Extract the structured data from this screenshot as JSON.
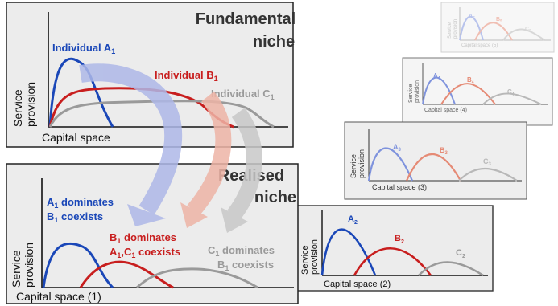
{
  "colors": {
    "blue": "#1a47b8",
    "red": "#c81e1e",
    "gray": "#9a9a9a",
    "blue_light": "#7f93dd",
    "red_light": "#e58a75",
    "gray_light": "#b8b8b8",
    "panel_bg": "#ececec",
    "arrow_blue": "#aeb8e8",
    "arrow_red": "#eeb4a6",
    "arrow_gray": "#c8c8c8"
  },
  "fundamental": {
    "title_line1": "Fundamental",
    "title_line2": "niche",
    "label_a": "Individual A",
    "label_a_sub": "1",
    "label_b": "Individual B",
    "label_b_sub": "1",
    "label_c": "Individual C",
    "label_c_sub": "1",
    "ylabel_1": "Service",
    "ylabel_2": "provision",
    "xlabel": "Capital space"
  },
  "realised": {
    "title_line1": "Realised",
    "title_line2": "niche",
    "a_line1": "A",
    "a_line1_sub": "1",
    "a_line1_rest": " dominates",
    "a_line2": "B",
    "a_line2_sub": "1",
    "a_line2_rest": " coexists",
    "b_line1": "B",
    "b_line1_sub": "1",
    "b_line1_rest": " dominates",
    "b_line2a": "A",
    "b_line2a_sub": "1",
    "b_line2b": ",C",
    "b_line2b_sub": "1",
    "b_line2_rest": " coexists",
    "c_line1": "C",
    "c_line1_sub": "1",
    "c_line1_rest": " dominates",
    "c_line2": "B",
    "c_line2_sub": "1",
    "c_line2_rest": " coexists",
    "ylabel_1": "Service",
    "ylabel_2": "provision",
    "xlabel": "Capital space (1)"
  },
  "panel2": {
    "label_a": "A",
    "label_a_sub": "2",
    "label_b": "B",
    "label_b_sub": "2",
    "label_c": "C",
    "label_c_sub": "2",
    "ylabel_1": "Service",
    "ylabel_2": "provision",
    "xlabel": "Capital space (2)"
  },
  "panel3": {
    "label_a": "A",
    "label_a_sub": "3",
    "label_b": "B",
    "label_b_sub": "3",
    "label_c": "C",
    "label_c_sub": "3",
    "ylabel_1": "Service",
    "ylabel_2": "provision",
    "xlabel": "Capital space (3)"
  },
  "panel4": {
    "label_a": "A",
    "label_a_sub": "4",
    "label_b": "B",
    "label_b_sub": "4",
    "label_c": "C",
    "label_c_sub": "4",
    "ylabel_1": "Service",
    "ylabel_2": "provision",
    "xlabel": "Capital space (4)"
  },
  "panel5": {
    "label_a": "A",
    "label_a_sub": "5",
    "label_b": "B",
    "label_b_sub": "5",
    "label_c": "C",
    "label_c_sub": "5",
    "ylabel_1": "Service",
    "ylabel_2": "provision",
    "xlabel": "Capital space (5)"
  }
}
